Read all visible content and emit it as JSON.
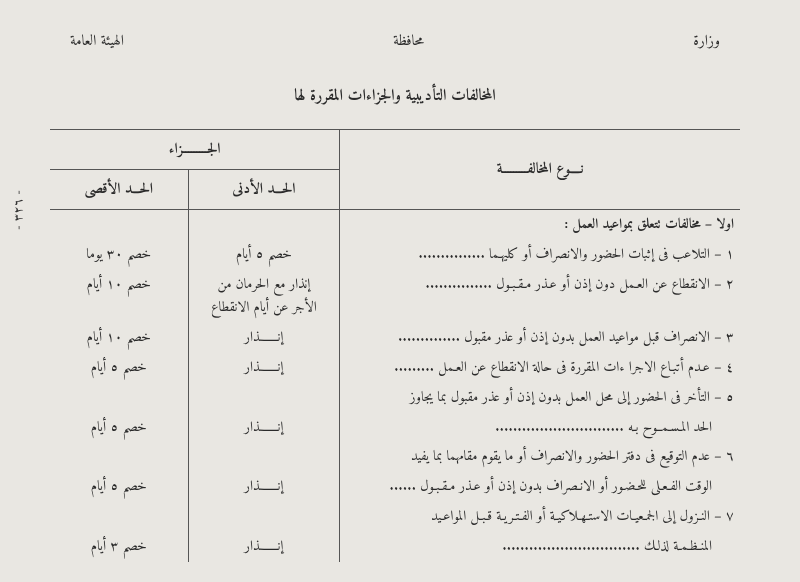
{
  "header": {
    "right": "وزارة",
    "center": "محافظة",
    "left": "الهيئة العامة"
  },
  "title": "المخالفات التأديبية والجزاءات المقررة لها",
  "columns": {
    "violation": "نــــوع المخالفـــــــــة",
    "penalty_group": "الجـــــــــزاء",
    "min": "الحـــد الأدنى",
    "max": "الحـــد الأقصى"
  },
  "section": "اولا – مخالفات تتعلق بمواعيد العمل :",
  "rows": [
    {
      "t": "١ – التلاعب فى إثبات الحضور والانصراف أو كليهـما ...............",
      "min": "خصم ٥ أيام",
      "max": "خصم ٣٠ يوما"
    },
    {
      "t": "٢ – الانقطاع عن العـمل دون إذن أو عـذر مـقـبـول ...............",
      "min": "إنذار مع الحرمان من\nالأجر عن أيام الانقطاع",
      "max": "خصم ١٠ أيام"
    },
    {
      "t": "٣ – الانصراف قبل مواعيد العمل بدون إذن أو عذر مقبول ..............",
      "min": "إنـــــــذار",
      "max": "خصم ١٠ أيام"
    },
    {
      "t": "٤ – عـدم أتبـاع الاجرا ءات المقررة فى حالة الانقطاع عن العـمل .........",
      "min": "إنـــــــذار",
      "max": "خصم ٥ أيام"
    },
    {
      "t": "٥ – التأخر فى الحضور إلى محل العمل بدون إذن أو عذر مقبول بما يجاوز",
      "min": "",
      "max": ""
    },
    {
      "t": "الحد المـسـمــوح بـه .............................",
      "indent": true,
      "min": "إنـــــــذار",
      "max": "خصم ٥ أيام"
    },
    {
      "t": "٦ – عدم التوقيع فى دفتر الحضور والانصراف أو ما يقوم مقامهما بما يفيد",
      "min": "",
      "max": ""
    },
    {
      "t": "الوقت الفـعـلى للحـضـور أو الانـصراف بدون إذن أو عـذر مـقـبـول ......",
      "indent": true,
      "min": "إنـــــــذار",
      "max": "خصم ٥ أيام"
    },
    {
      "t": "٧ – النـزول إلى الجمـعيـات الاستـهـلاكيـة أو الفـتـريـة قـبـل المواعـيد",
      "min": "",
      "max": ""
    },
    {
      "t": "المنـظـمـة لذلـك ...............................",
      "indent": true,
      "min": "إنـــــــذار",
      "max": "خصم ٣ أيام"
    }
  ],
  "page_number": "- ٣٢٦ -"
}
